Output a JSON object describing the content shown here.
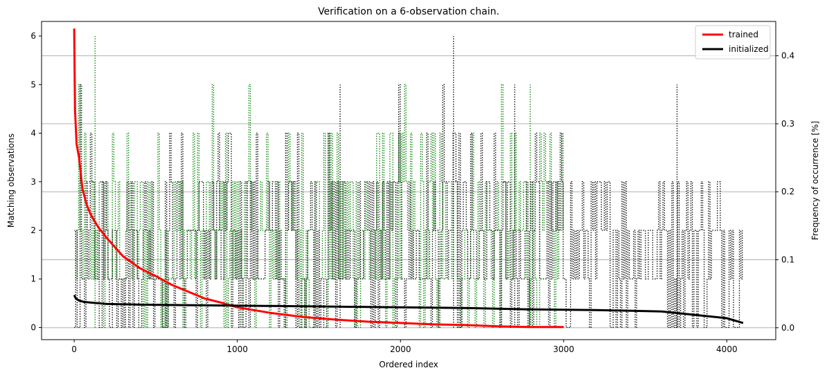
{
  "chart_data": {
    "type": "line",
    "title": "Verification on a 6-observation chain.",
    "xlabel": "Ordered index",
    "ylabel": "Matching observations",
    "y2label": "Frequency of occurrence [%]",
    "xlim": [
      -200,
      4300
    ],
    "ylim": [
      -0.25,
      6.3
    ],
    "y2lim": [
      -0.0175,
      0.4505
    ],
    "xticks": [
      0,
      1000,
      2000,
      3000,
      4000
    ],
    "yticks": [
      0,
      1,
      2,
      3,
      4,
      5,
      6
    ],
    "y2ticks": [
      0.0,
      0.1,
      0.2,
      0.3,
      0.4
    ],
    "grid": "horizontal lines at right-axis ticks",
    "legend_position": "top-right",
    "series": [
      {
        "name": "trained",
        "axis": "right",
        "color": "#ff0000",
        "style": "solid",
        "x": [
          0,
          5,
          15,
          30,
          50,
          75,
          100,
          150,
          200,
          300,
          400,
          500,
          600,
          700,
          800,
          900,
          1000,
          1200,
          1400,
          1600,
          1800,
          2000,
          2200,
          2400,
          2600,
          2800,
          3000
        ],
        "y": [
          0.44,
          0.32,
          0.27,
          0.25,
          0.205,
          0.182,
          0.167,
          0.147,
          0.132,
          0.105,
          0.088,
          0.076,
          0.063,
          0.053,
          0.043,
          0.037,
          0.03,
          0.022,
          0.016,
          0.012,
          0.009,
          0.007,
          0.005,
          0.004,
          0.002,
          0.001,
          0.001
        ]
      },
      {
        "name": "initialized",
        "axis": "right",
        "color": "#000000",
        "style": "solid",
        "x": [
          0,
          10,
          30,
          60,
          100,
          200,
          400,
          800,
          1200,
          1600,
          2000,
          2400,
          2800,
          3200,
          3600,
          4000,
          4100
        ],
        "y": [
          0.048,
          0.043,
          0.04,
          0.038,
          0.037,
          0.035,
          0.034,
          0.033,
          0.032,
          0.031,
          0.03,
          0.029,
          0.027,
          0.026,
          0.024,
          0.014,
          0.007
        ]
      },
      {
        "name": "",
        "axis": "left",
        "color": "#008000",
        "style": "dotted",
        "x_range": [
          0,
          3000
        ],
        "values_range": [
          0,
          6
        ]
      },
      {
        "name": "",
        "axis": "left",
        "color": "#000000",
        "style": "dotted",
        "x_range": [
          0,
          4100
        ],
        "values_range": [
          0,
          6
        ]
      }
    ]
  }
}
